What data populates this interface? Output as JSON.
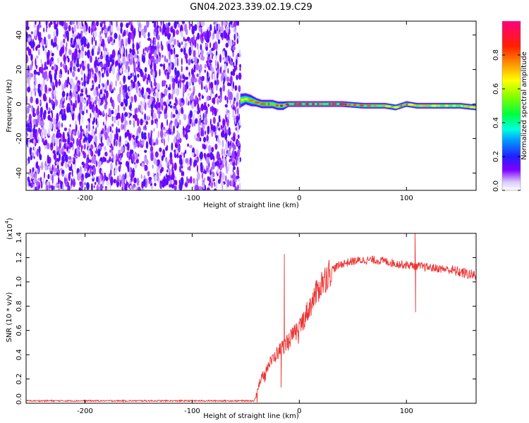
{
  "title": "GN04.2023.339.02.19.C29",
  "chart_data": [
    {
      "type": "heatmap",
      "name": "spectrogram",
      "xlabel": "Height of straight line (km)",
      "ylabel": "Frequency (Hz)",
      "xlim": [
        -255,
        165
      ],
      "ylim": [
        -50,
        48
      ],
      "xticks": [
        -200,
        -100,
        0,
        100
      ],
      "xtick_labels": [
        "-200",
        "-100",
        "0",
        "100"
      ],
      "yticks": [
        -40,
        -20,
        0,
        20,
        40
      ],
      "ytick_labels": [
        "-40",
        "-20",
        "0",
        "20",
        "40"
      ],
      "noise_region_x": [
        -255,
        -55
      ],
      "signal_band": {
        "x": [
          -55,
          -50,
          -45,
          -40,
          -35,
          -30,
          -25,
          -20,
          -15,
          -10,
          0,
          20,
          40,
          60,
          80,
          90,
          100,
          110,
          130,
          150,
          165
        ],
        "center_hz": [
          2,
          3,
          2,
          1,
          0,
          0,
          0,
          -1,
          -1,
          0,
          0,
          0,
          0,
          -1,
          -1,
          -2,
          0,
          -1,
          -1,
          -1,
          -2
        ],
        "half_width_hz": [
          5,
          4,
          4,
          3,
          3,
          3,
          3,
          3,
          3,
          2,
          2,
          2,
          2,
          2,
          2,
          2,
          2,
          2,
          2,
          2,
          2
        ],
        "peak_amplitude": [
          0.6,
          0.7,
          0.75,
          0.8,
          0.85,
          0.85,
          0.9,
          0.9,
          0.95,
          0.95,
          0.95,
          0.9,
          0.85,
          0.8,
          0.75,
          0.75,
          0.8,
          0.7,
          0.7,
          0.7,
          0.7
        ]
      },
      "colorbar": {
        "label": "Normalized spectral amplitude",
        "range": [
          0,
          1
        ],
        "ticks": [
          0.0,
          0.2,
          0.4,
          0.6,
          0.8
        ],
        "tick_labels": [
          "0.0",
          "0.2",
          "0.4",
          "0.6",
          "0.8"
        ]
      }
    },
    {
      "type": "line",
      "name": "snr",
      "xlabel": "Height of straight line (km)",
      "ylabel": "SNR (10 * v/v)",
      "scale_label": "(x10",
      "scale_exp": "4",
      "scale_close": ")",
      "xlim": [
        -255,
        165
      ],
      "ylim": [
        0,
        1.4
      ],
      "xticks": [
        -200,
        -100,
        0,
        100
      ],
      "xtick_labels": [
        "-200",
        "-100",
        "0",
        "100"
      ],
      "yticks": [
        0,
        0.2,
        0.4,
        0.6,
        0.8,
        1.0,
        1.2,
        1.4
      ],
      "ytick_labels": [
        "0.0",
        "0.2",
        "0.4",
        "0.6",
        "0.8",
        "1.0",
        "1.2",
        "1.4"
      ],
      "color": "#ee3333",
      "trend": {
        "x": [
          -255,
          -42,
          -38,
          -30,
          -20,
          -10,
          0,
          10,
          20,
          30,
          40,
          50,
          60,
          70,
          80,
          90,
          100,
          110,
          120,
          130,
          140,
          150,
          165
        ],
        "y": [
          0.02,
          0.02,
          0.15,
          0.3,
          0.42,
          0.52,
          0.62,
          0.8,
          0.98,
          1.1,
          1.15,
          1.17,
          1.18,
          1.18,
          1.17,
          1.15,
          1.14,
          1.13,
          1.12,
          1.11,
          1.1,
          1.08,
          1.05
        ]
      },
      "spikes": [
        {
          "x": -14,
          "y": 1.23
        },
        {
          "x": -17,
          "y": 0.13
        },
        {
          "x": 108,
          "y": 1.41
        },
        {
          "x": 108.5,
          "y": 0.75
        }
      ]
    }
  ]
}
